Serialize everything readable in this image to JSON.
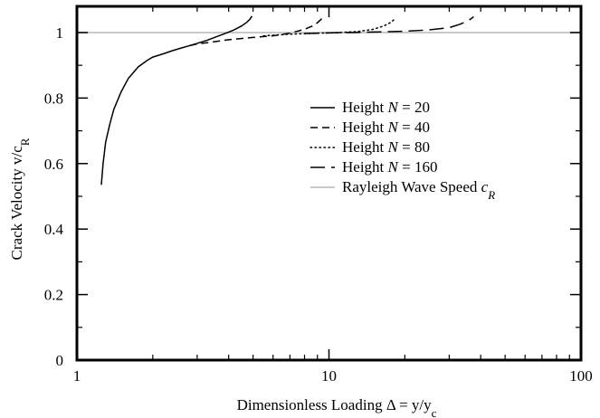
{
  "chart_data": {
    "type": "line",
    "xscale": "log",
    "xlim": [
      1,
      100
    ],
    "ylim": [
      0,
      1.08
    ],
    "xticks": [
      1,
      10,
      100
    ],
    "xtick_labels": [
      "1",
      "10",
      "100"
    ],
    "yticks": [
      0,
      0.2,
      0.4,
      0.6,
      0.8,
      1
    ],
    "ytick_labels": [
      "0",
      "0.2",
      "0.4",
      "0.6",
      "0.8",
      "1"
    ],
    "xlabel": "Dimensionless Loading Δ = y/y",
    "xlabel_sub": "c",
    "ylabel": "Crack Velocity v/c",
    "ylabel_sub": "R",
    "grid": false,
    "legend_position": "center-right",
    "series": [
      {
        "name": "Height N = 20",
        "label_main": "Height ",
        "label_var": "N",
        "label_rest": " = 20",
        "dash": "solid",
        "color": "#000000",
        "x": [
          1.25,
          1.27,
          1.3,
          1.35,
          1.4,
          1.5,
          1.6,
          1.75,
          1.9,
          2.0,
          2.2,
          2.4,
          2.6,
          2.8,
          3.0,
          3.3,
          3.6,
          3.9,
          4.2,
          4.5,
          4.7,
          4.85,
          4.95
        ],
        "y": [
          0.535,
          0.6,
          0.665,
          0.72,
          0.765,
          0.82,
          0.86,
          0.895,
          0.915,
          0.925,
          0.935,
          0.945,
          0.953,
          0.96,
          0.967,
          0.977,
          0.988,
          0.998,
          1.008,
          1.02,
          1.03,
          1.04,
          1.05
        ]
      },
      {
        "name": "Height N = 40",
        "label_main": "Height ",
        "label_var": "N",
        "label_rest": " = 40",
        "dash": "dashed",
        "color": "#000000",
        "x": [
          2.8,
          3.0,
          3.5,
          4.0,
          5.0,
          6.0,
          7.0,
          8.0,
          8.6,
          9.0,
          9.3,
          9.6
        ],
        "y": [
          0.96,
          0.965,
          0.972,
          0.978,
          0.985,
          0.99,
          0.998,
          1.01,
          1.02,
          1.03,
          1.04,
          1.052
        ]
      },
      {
        "name": "Height N = 80",
        "label_main": "Height ",
        "label_var": "N",
        "label_rest": " = 80",
        "dash": "dotted",
        "color": "#000000",
        "x": [
          5.5,
          7.0,
          9.0,
          11.0,
          13.0,
          15.0,
          16.5,
          17.5,
          18.3
        ],
        "y": [
          0.99,
          0.995,
          0.998,
          1.0,
          1.003,
          1.01,
          1.02,
          1.03,
          1.042
        ]
      },
      {
        "name": "Height N = 160",
        "label_main": "Height ",
        "label_var": "N",
        "label_rest": " = 160",
        "dash": "longdash",
        "color": "#000000",
        "x": [
          8.0,
          12.0,
          16.0,
          20.0,
          25.0,
          30.0,
          33.0,
          35.5,
          37.5
        ],
        "y": [
          0.997,
          1.0,
          1.002,
          1.004,
          1.008,
          1.015,
          1.025,
          1.035,
          1.048
        ]
      },
      {
        "name": "Rayleigh Wave Speed c_R",
        "label_main": "Rayleigh Wave Speed ",
        "label_var": "c",
        "label_sub": "R",
        "dash": "solid",
        "color": "#c8c8c8",
        "x": [
          1,
          100
        ],
        "y": [
          1,
          1
        ]
      }
    ]
  }
}
